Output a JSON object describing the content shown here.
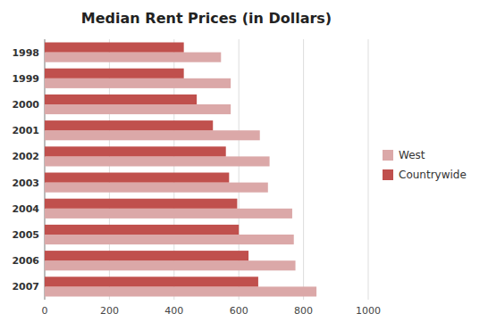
{
  "chart_data": {
    "type": "bar",
    "orientation": "horizontal",
    "title": "Median Rent Prices (in Dollars)",
    "categories": [
      "1998",
      "1999",
      "2000",
      "2001",
      "2002",
      "2003",
      "2004",
      "2005",
      "2006",
      "2007"
    ],
    "series": [
      {
        "name": "West",
        "color": "#dba8a8",
        "values": [
          545,
          575,
          575,
          665,
          695,
          690,
          765,
          770,
          775,
          840
        ]
      },
      {
        "name": "Countrywide",
        "color": "#c0504d",
        "values": [
          430,
          430,
          470,
          520,
          560,
          570,
          595,
          600,
          630,
          660
        ]
      }
    ],
    "xlim": [
      0,
      1000
    ],
    "xticks": [
      0,
      200,
      400,
      600,
      800,
      1000
    ],
    "grid": true,
    "legend": "right"
  }
}
